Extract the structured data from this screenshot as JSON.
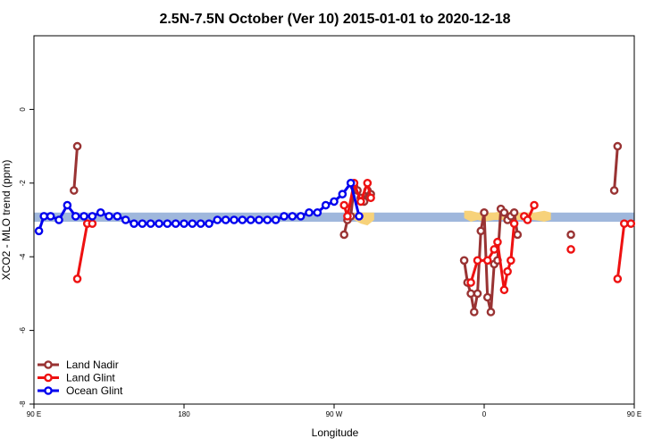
{
  "chart_data": {
    "type": "line",
    "title": "2.5N-7.5N October (Ver 10)   2015-01-01 to 2020-12-18",
    "xlabel": "Longitude",
    "ylabel": "XCO2 - MLO trend (ppm)",
    "xlim": [
      90,
      450
    ],
    "ylim": [
      -8,
      2
    ],
    "x_ticks": [
      {
        "value": 90,
        "label": "90 E"
      },
      {
        "value": 180,
        "label": "180"
      },
      {
        "value": 270,
        "label": "90 W"
      },
      {
        "value": 360,
        "label": "0"
      },
      {
        "value": 450,
        "label": "90 E"
      }
    ],
    "y_ticks": [
      {
        "value": 0,
        "label": "0"
      },
      {
        "value": -2,
        "label": "-2"
      },
      {
        "value": -4,
        "label": "-4"
      },
      {
        "value": -6,
        "label": "-6"
      },
      {
        "value": -8,
        "label": "-8"
      }
    ],
    "grid": false,
    "legend_position": "bottom-left",
    "background_band": {
      "color": "#9fb7dc",
      "ymin": -3.05,
      "ymax": -2.8
    },
    "background_highlight": {
      "color": "#f7d27a",
      "segments": [
        {
          "x": [
            282,
            286,
            290,
            294
          ],
          "ymin": [
            -3.0,
            -3.1,
            -3.15,
            -3.0
          ],
          "ymax": [
            -2.8,
            -2.8,
            -2.8,
            -2.8
          ]
        },
        {
          "x": [
            348,
            352,
            356,
            360,
            366,
            372,
            378,
            384,
            390,
            396,
            400
          ],
          "ymin": [
            -2.95,
            -3.05,
            -3.0,
            -3.05,
            -3.0,
            -3.0,
            -3.0,
            -3.0,
            -3.0,
            -3.05,
            -3.0
          ],
          "ymax": [
            -2.75,
            -2.75,
            -2.8,
            -2.8,
            -2.8,
            -2.75,
            -2.8,
            -2.8,
            -2.8,
            -2.75,
            -2.8
          ]
        }
      ]
    },
    "series": [
      {
        "name": "Land Nadir",
        "color": "#993333",
        "segments": [
          {
            "x": [
              114,
              116
            ],
            "y": [
              -2.2,
              -1.0
            ]
          },
          {
            "x": [
              276,
              278,
              280,
              282,
              284,
              286,
              288,
              290,
              292
            ],
            "y": [
              -3.4,
              -3.0,
              -2.9,
              -2.1,
              -2.2,
              -2.4,
              -2.5,
              -2.2,
              -2.3
            ]
          },
          {
            "x": [
              348,
              350,
              352,
              354,
              356,
              358,
              360,
              362,
              364,
              366,
              368,
              370,
              372,
              374,
              376,
              378,
              380
            ],
            "y": [
              -4.1,
              -4.7,
              -5.0,
              -5.5,
              -5.0,
              -3.3,
              -2.8,
              -5.1,
              -5.5,
              -4.2,
              -4.1,
              -2.7,
              -2.8,
              -3.0,
              -2.9,
              -2.8,
              -3.4
            ]
          },
          {
            "x": [
              412
            ],
            "y": [
              -3.4
            ]
          },
          {
            "x": [
              438,
              440
            ],
            "y": [
              -2.2,
              -1.0
            ]
          }
        ]
      },
      {
        "name": "Land Glint",
        "color": "#ee1111",
        "segments": [
          {
            "x": [
              116,
              122,
              125
            ],
            "y": [
              -4.6,
              -3.1,
              -3.1
            ]
          },
          {
            "x": [
              276,
              278,
              282,
              286,
              290,
              292
            ],
            "y": [
              -2.6,
              -2.9,
              -2.0,
              -2.5,
              -2.0,
              -2.4
            ]
          },
          {
            "x": [
              352,
              356,
              362,
              366,
              368,
              372,
              374,
              376,
              378
            ],
            "y": [
              -4.7,
              -4.1,
              -4.1,
              -3.8,
              -3.6,
              -4.9,
              -4.4,
              -4.1,
              -3.1
            ]
          },
          {
            "x": [
              384,
              386,
              390
            ],
            "y": [
              -2.9,
              -3.0,
              -2.6
            ]
          },
          {
            "x": [
              412
            ],
            "y": [
              -3.8
            ]
          },
          {
            "x": [
              440,
              444,
              448
            ],
            "y": [
              -4.6,
              -3.1,
              -3.1
            ]
          }
        ]
      },
      {
        "name": "Ocean Glint",
        "color": "#0000ee",
        "segments": [
          {
            "x": [
              93,
              96,
              100,
              105,
              110,
              115,
              120,
              125,
              130,
              135,
              140,
              145,
              150,
              155,
              160,
              165,
              170,
              175,
              180,
              185,
              190,
              195,
              200,
              205,
              210,
              215,
              220,
              225,
              230,
              235,
              240,
              245,
              250,
              255,
              260,
              265,
              270,
              275,
              280,
              285
            ],
            "y": [
              -3.3,
              -2.9,
              -2.9,
              -3.0,
              -2.6,
              -2.9,
              -2.9,
              -2.9,
              -2.8,
              -2.9,
              -2.9,
              -3.0,
              -3.1,
              -3.1,
              -3.1,
              -3.1,
              -3.1,
              -3.1,
              -3.1,
              -3.1,
              -3.1,
              -3.1,
              -3.0,
              -3.0,
              -3.0,
              -3.0,
              -3.0,
              -3.0,
              -3.0,
              -3.0,
              -2.9,
              -2.9,
              -2.9,
              -2.8,
              -2.8,
              -2.6,
              -2.5,
              -2.3,
              -2.0,
              -2.9
            ]
          }
        ]
      }
    ]
  },
  "legend": {
    "items": [
      {
        "label": "Land Nadir",
        "color": "#993333"
      },
      {
        "label": "Land Glint",
        "color": "#ee1111"
      },
      {
        "label": "Ocean Glint",
        "color": "#0000ee"
      }
    ]
  }
}
